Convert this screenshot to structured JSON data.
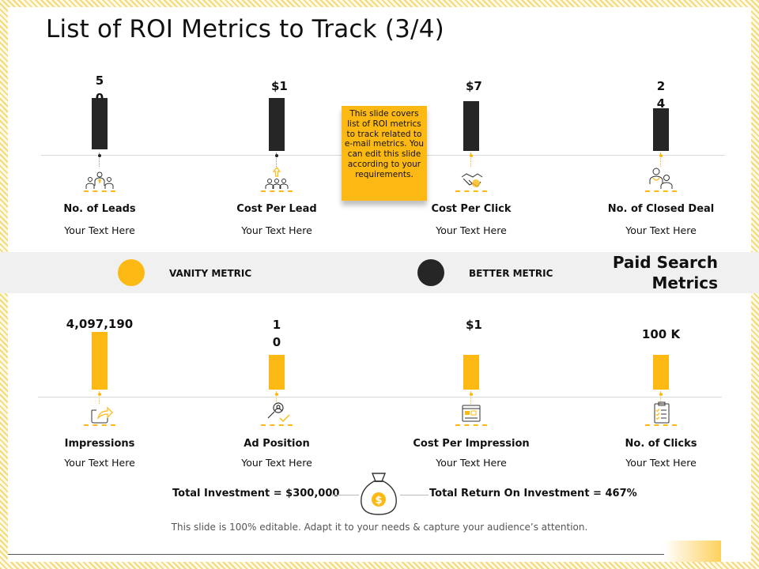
{
  "slide": {
    "title": "List of ROI Metrics to Track (3/4)",
    "note": "This slide covers list of ROI metrics to track related to e-mail metrics. You can edit this slide according to your requirements.",
    "footer": "This slide is 100% editable. Adapt it to your needs & capture your audience’s attention."
  },
  "colors": {
    "accent": "#fdb913",
    "dark": "#262626",
    "band": "#f0f0f0"
  },
  "top_metrics": [
    {
      "value": "50",
      "label": "No. of Leads",
      "sub": "Your Text Here",
      "icon": "group-people-icon",
      "bar_level": 0.9
    },
    {
      "value": "$1",
      "label": "Cost Per Lead",
      "sub": "Your Text Here",
      "icon": "people-upload-icon",
      "bar_level": 0.9
    },
    {
      "value": "$7",
      "label": "Cost Per Click",
      "sub": "Your Text Here",
      "icon": "handshake-icon",
      "bar_level": 0.85
    },
    {
      "value": "24",
      "label": "No. of Closed Deal",
      "sub": "Your Text Here",
      "icon": "doctor-patient-icon",
      "bar_level": 0.7
    }
  ],
  "legend": {
    "vanity": "VANITY METRIC",
    "better": "BETTER METRIC",
    "section_title_1": "Paid Search",
    "section_title_2": "Metrics"
  },
  "bottom_metrics": [
    {
      "value": "4,097,190",
      "label": "Impressions",
      "sub": "Your Text Here",
      "icon": "share-window-icon",
      "bar_level": 1.0
    },
    {
      "value": "10",
      "label": "Ad Position",
      "sub": "Your Text Here",
      "icon": "search-person-check-icon",
      "bar_level": 0.6
    },
    {
      "value": "$1",
      "label": "Cost Per Impression",
      "sub": "Your Text Here",
      "icon": "browser-form-icon",
      "bar_level": 0.6
    },
    {
      "value": "100 K",
      "label": "No. of Clicks",
      "sub": "Your Text Here",
      "icon": "checklist-icon",
      "bar_level": 0.6
    }
  ],
  "totals": {
    "investment": "Total Investment = $300,000",
    "roi": "Total Return On Investment = 467%",
    "icon": "money-bag-icon",
    "symbol": "$"
  }
}
